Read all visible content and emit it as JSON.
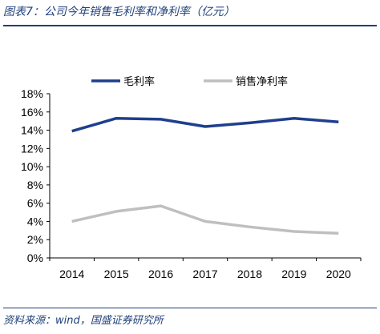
{
  "title": "图表7：公司今年销售毛利率和净利率（亿元）",
  "source": "资料来源：wind，国盛证券研究所",
  "chart_data": {
    "type": "line",
    "title": "图表7：公司今年销售毛利率和净利率（亿元）",
    "xlabel": "",
    "ylabel": "",
    "categories": [
      "2014",
      "2015",
      "2016",
      "2017",
      "2018",
      "2019",
      "2020"
    ],
    "ylim": [
      0,
      18
    ],
    "yticks": [
      "0%",
      "2%",
      "4%",
      "6%",
      "8%",
      "10%",
      "12%",
      "14%",
      "16%",
      "18%"
    ],
    "grid": false,
    "legend_position": "top",
    "series": [
      {
        "name": "毛利率",
        "values": [
          13.9,
          15.3,
          15.2,
          14.4,
          14.8,
          15.3,
          14.9
        ],
        "color": "#1f3f8c"
      },
      {
        "name": "销售净利率",
        "values": [
          4.0,
          5.1,
          5.7,
          4.0,
          3.4,
          2.9,
          2.7
        ],
        "color": "#bfbfbf"
      }
    ]
  }
}
